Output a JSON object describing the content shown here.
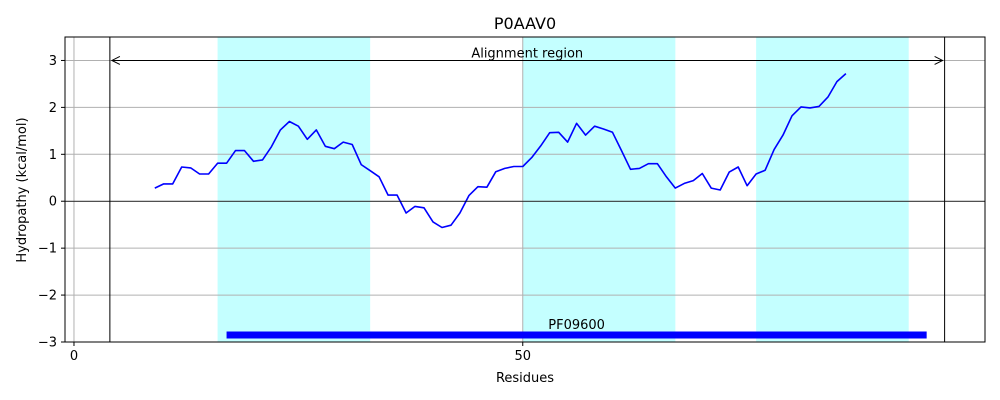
{
  "chart_data": {
    "type": "line",
    "title": "P0AAV0",
    "xlabel": "Residues",
    "ylabel": "Hydropathy (kcal/mol)",
    "xlim": [
      -1,
      101.5
    ],
    "ylim": [
      -3,
      3.5
    ],
    "x_ticks": [
      0,
      50
    ],
    "x_tick_labels": [
      "0",
      "50"
    ],
    "y_ticks": [
      -3,
      -2,
      -1,
      0,
      1,
      2,
      3
    ],
    "y_tick_labels": [
      "−3",
      "−2",
      "−1",
      "0",
      "1",
      "2",
      "3"
    ],
    "grid": true,
    "series": [
      {
        "color": "#0000ff",
        "x": [
          9,
          10,
          11,
          12,
          13,
          14,
          15,
          16,
          17,
          18,
          19,
          20,
          21,
          22,
          23,
          24,
          25,
          26,
          27,
          28,
          29,
          30,
          31,
          32,
          33,
          34,
          35,
          36,
          37,
          38,
          39,
          40,
          41,
          42,
          43,
          44,
          45,
          46,
          47,
          48,
          49,
          50,
          51,
          52,
          53,
          54,
          55,
          56,
          57,
          58,
          59,
          60,
          61,
          62,
          63,
          64,
          65,
          66,
          67,
          68,
          69,
          70,
          71,
          72,
          73,
          74,
          75,
          76,
          77,
          78,
          79,
          80,
          81,
          82,
          83,
          84,
          85,
          86
        ],
        "y": [
          0.28,
          0.37,
          0.37,
          0.73,
          0.71,
          0.58,
          0.58,
          0.81,
          0.81,
          1.08,
          1.08,
          0.85,
          0.88,
          1.16,
          1.52,
          1.7,
          1.6,
          1.32,
          1.52,
          1.17,
          1.12,
          1.26,
          1.21,
          0.78,
          0.65,
          0.52,
          0.13,
          0.13,
          -0.25,
          -0.11,
          -0.14,
          -0.44,
          -0.56,
          -0.51,
          -0.25,
          0.12,
          0.31,
          0.3,
          0.63,
          0.7,
          0.74,
          0.74,
          0.93,
          1.18,
          1.46,
          1.47,
          1.26,
          1.66,
          1.41,
          1.6,
          1.54,
          1.47,
          1.08,
          0.68,
          0.7,
          0.8,
          0.8,
          0.52,
          0.28,
          0.38,
          0.44,
          0.59,
          0.28,
          0.24,
          0.62,
          0.73,
          0.33,
          0.58,
          0.66,
          1.1,
          1.41,
          1.82,
          2.01,
          1.99,
          2.02,
          2.22,
          2.55,
          2.72
        ]
      }
    ],
    "shaded_regions": [
      {
        "x0": 16,
        "x1": 33,
        "color": "#c4ffff"
      },
      {
        "x0": 50,
        "x1": 67,
        "color": "#c4ffff"
      },
      {
        "x0": 76,
        "x1": 93,
        "color": "#c4ffff"
      }
    ],
    "alignment_region": {
      "label": "Alignment region",
      "x0": 4,
      "x1": 97,
      "y": 3.0
    },
    "domain_bar": {
      "label": "PF09600",
      "x0": 17,
      "x1": 95,
      "y": -2.85,
      "color": "#0000ff"
    }
  }
}
